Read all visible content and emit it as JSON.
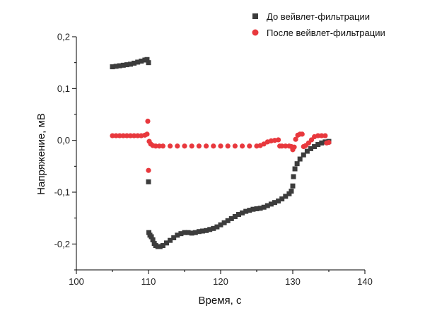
{
  "chart_data": {
    "type": "scatter",
    "title": "",
    "xlabel": "Время, с",
    "ylabel": "Напряжение, мВ",
    "xlim": [
      100,
      140
    ],
    "ylim": [
      -0.25,
      0.2
    ],
    "x_ticks": [
      100,
      110,
      120,
      130,
      140
    ],
    "x_tick_labels": [
      "100",
      "110",
      "120",
      "130",
      "140"
    ],
    "y_ticks": [
      -0.2,
      -0.1,
      0.0,
      0.1,
      0.2
    ],
    "y_tick_labels": [
      "-0,2",
      "-0,1",
      "0,0",
      "0,1",
      "0,2"
    ],
    "grid": false,
    "legend_position": "top-right",
    "series": [
      {
        "name": "До вейвлет-фильтрации",
        "marker": "square",
        "color": "#3c3c3c",
        "points": [
          [
            105.0,
            0.142
          ],
          [
            105.5,
            0.143
          ],
          [
            106.0,
            0.144
          ],
          [
            106.5,
            0.145
          ],
          [
            107.0,
            0.146
          ],
          [
            107.5,
            0.147
          ],
          [
            108.0,
            0.149
          ],
          [
            108.5,
            0.151
          ],
          [
            109.0,
            0.153
          ],
          [
            109.5,
            0.155
          ],
          [
            109.8,
            0.156
          ],
          [
            110.0,
            0.15
          ],
          [
            110.0,
            -0.08
          ],
          [
            110.05,
            -0.178
          ],
          [
            110.2,
            -0.183
          ],
          [
            110.4,
            -0.186
          ],
          [
            110.6,
            -0.192
          ],
          [
            110.8,
            -0.199
          ],
          [
            111.0,
            -0.203
          ],
          [
            111.3,
            -0.205
          ],
          [
            111.6,
            -0.205
          ],
          [
            112.0,
            -0.203
          ],
          [
            112.5,
            -0.198
          ],
          [
            113.0,
            -0.193
          ],
          [
            113.5,
            -0.188
          ],
          [
            114.0,
            -0.183
          ],
          [
            114.5,
            -0.18
          ],
          [
            115.0,
            -0.178
          ],
          [
            115.5,
            -0.178
          ],
          [
            116.0,
            -0.179
          ],
          [
            116.5,
            -0.178
          ],
          [
            117.0,
            -0.176
          ],
          [
            117.5,
            -0.175
          ],
          [
            118.0,
            -0.174
          ],
          [
            118.5,
            -0.172
          ],
          [
            119.0,
            -0.17
          ],
          [
            119.5,
            -0.167
          ],
          [
            120.0,
            -0.163
          ],
          [
            120.5,
            -0.159
          ],
          [
            121.0,
            -0.155
          ],
          [
            121.5,
            -0.151
          ],
          [
            122.0,
            -0.147
          ],
          [
            122.5,
            -0.143
          ],
          [
            123.0,
            -0.14
          ],
          [
            123.5,
            -0.137
          ],
          [
            124.0,
            -0.135
          ],
          [
            124.5,
            -0.133
          ],
          [
            125.0,
            -0.132
          ],
          [
            125.5,
            -0.131
          ],
          [
            126.0,
            -0.129
          ],
          [
            126.5,
            -0.126
          ],
          [
            127.0,
            -0.123
          ],
          [
            127.5,
            -0.12
          ],
          [
            128.0,
            -0.117
          ],
          [
            128.5,
            -0.113
          ],
          [
            129.0,
            -0.108
          ],
          [
            129.5,
            -0.103
          ],
          [
            129.8,
            -0.098
          ],
          [
            130.0,
            -0.088
          ],
          [
            130.1,
            -0.07
          ],
          [
            130.3,
            -0.055
          ],
          [
            130.6,
            -0.045
          ],
          [
            131.0,
            -0.036
          ],
          [
            131.5,
            -0.028
          ],
          [
            132.0,
            -0.021
          ],
          [
            132.5,
            -0.016
          ],
          [
            133.0,
            -0.012
          ],
          [
            133.5,
            -0.008
          ],
          [
            134.0,
            -0.005
          ],
          [
            134.5,
            -0.003
          ],
          [
            135.0,
            -0.002
          ]
        ]
      },
      {
        "name": "После вейвлет-фильтрации",
        "marker": "circle",
        "color": "#e8383d",
        "points": [
          [
            105.0,
            0.009
          ],
          [
            105.5,
            0.009
          ],
          [
            106.0,
            0.009
          ],
          [
            106.5,
            0.009
          ],
          [
            107.0,
            0.009
          ],
          [
            107.5,
            0.009
          ],
          [
            108.0,
            0.009
          ],
          [
            108.5,
            0.009
          ],
          [
            109.0,
            0.009
          ],
          [
            109.5,
            0.01
          ],
          [
            109.8,
            0.012
          ],
          [
            109.9,
            0.037
          ],
          [
            110.0,
            -0.058
          ],
          [
            110.1,
            -0.002
          ],
          [
            110.3,
            -0.007
          ],
          [
            110.6,
            -0.01
          ],
          [
            111.0,
            -0.011
          ],
          [
            111.5,
            -0.011
          ],
          [
            112.0,
            -0.011
          ],
          [
            113.0,
            -0.011
          ],
          [
            114.0,
            -0.011
          ],
          [
            115.0,
            -0.011
          ],
          [
            116.0,
            -0.011
          ],
          [
            117.0,
            -0.011
          ],
          [
            118.0,
            -0.011
          ],
          [
            119.0,
            -0.011
          ],
          [
            120.0,
            -0.011
          ],
          [
            121.0,
            -0.011
          ],
          [
            122.0,
            -0.011
          ],
          [
            123.0,
            -0.011
          ],
          [
            124.0,
            -0.011
          ],
          [
            125.0,
            -0.011
          ],
          [
            125.5,
            -0.01
          ],
          [
            126.0,
            -0.007
          ],
          [
            126.5,
            -0.003
          ],
          [
            127.0,
            -0.001
          ],
          [
            127.5,
            0.0
          ],
          [
            128.0,
            0.001
          ],
          [
            128.2,
            -0.011
          ],
          [
            128.5,
            -0.011
          ],
          [
            129.0,
            -0.011
          ],
          [
            129.5,
            -0.011
          ],
          [
            129.8,
            -0.012
          ],
          [
            130.0,
            -0.018
          ],
          [
            130.2,
            -0.013
          ],
          [
            130.4,
            0.002
          ],
          [
            130.7,
            0.01
          ],
          [
            131.0,
            0.012
          ],
          [
            131.3,
            0.012
          ],
          [
            131.5,
            -0.012
          ],
          [
            131.8,
            -0.01
          ],
          [
            132.2,
            -0.005
          ],
          [
            132.6,
            0.001
          ],
          [
            133.0,
            0.007
          ],
          [
            133.5,
            0.009
          ],
          [
            134.0,
            0.009
          ],
          [
            134.5,
            0.009
          ],
          [
            134.7,
            -0.005
          ],
          [
            135.0,
            -0.004
          ]
        ]
      }
    ]
  }
}
